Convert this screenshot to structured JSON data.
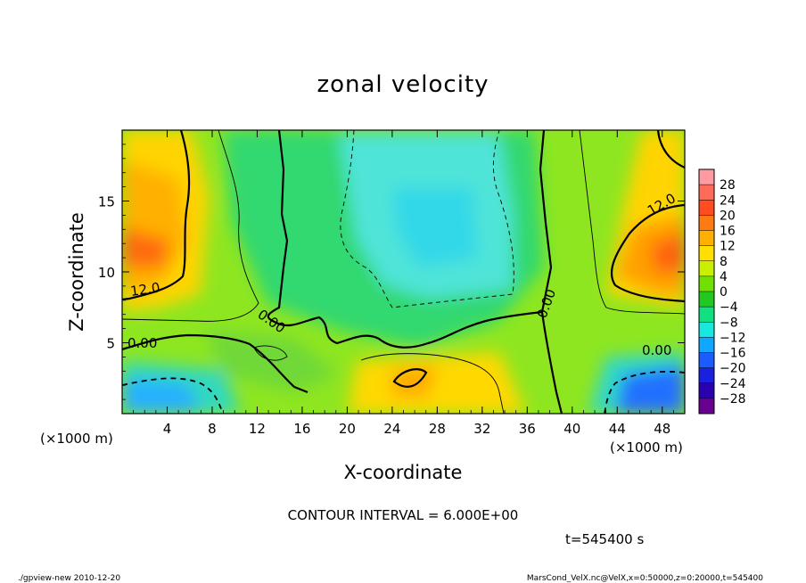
{
  "chart_data": {
    "type": "heatmap",
    "title": "zonal velocity",
    "xlabel": "X-coordinate",
    "ylabel": "Z-coordinate",
    "x_units_left": "(×1000 m)",
    "x_units_right": "(×1000 m)",
    "xlim": [
      0,
      50
    ],
    "ylim": [
      0,
      20
    ],
    "x_ticks": [
      "4",
      "8",
      "12",
      "16",
      "20",
      "24",
      "28",
      "32",
      "36",
      "40",
      "44",
      "48"
    ],
    "y_ticks": [
      "5",
      "10",
      "15"
    ],
    "contour_interval_text": "CONTOUR INTERVAL = 6.000E+00",
    "time_text": "t=545400 s",
    "contour_labels": [
      "12.0",
      "0.00",
      "0.00",
      "0.00",
      "0.00",
      "12.0"
    ],
    "colorbar": {
      "labels": [
        "28",
        "24",
        "20",
        "16",
        "12",
        "8",
        "4",
        "0",
        "−4",
        "−8",
        "−12",
        "−16",
        "−20",
        "−24",
        "−28"
      ],
      "colors": [
        "#ff9aa0",
        "#ff6a5a",
        "#ff4d1f",
        "#ff7a10",
        "#ffb000",
        "#ffe000",
        "#c8f000",
        "#70e000",
        "#20c820",
        "#10e080",
        "#18e8e0",
        "#10a8ff",
        "#1a5cff",
        "#1a20e0",
        "#2a00b0",
        "#6a0090"
      ]
    },
    "grid": false
  },
  "footer": {
    "left": "./gpview-new  2010-12-20",
    "right": "MarsCond_VelX.nc@VelX,x=0:50000,z=0:20000,t=545400"
  }
}
